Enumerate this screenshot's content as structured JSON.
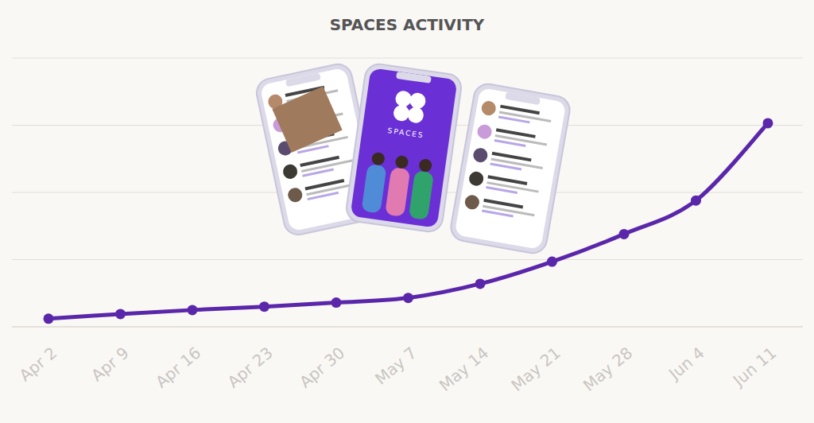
{
  "chart_data": {
    "type": "line",
    "title": "SPACES ACTIVITY",
    "categories": [
      "Apr 2",
      "Apr 9",
      "Apr 16",
      "Apr 23",
      "Apr 30",
      "May 7",
      "May 14",
      "May 21",
      "May 28",
      "Jun 4",
      "Jun 11"
    ],
    "values": [
      0.12,
      0.19,
      0.25,
      0.3,
      0.36,
      0.43,
      0.64,
      0.97,
      1.38,
      1.88,
      3.03
    ],
    "color": "#5a27ab",
    "ylim": [
      0,
      4
    ],
    "yticks": [
      0,
      1,
      2,
      3,
      4
    ],
    "grid": true,
    "tick_labels": "x",
    "marker": "circle",
    "annotations": [
      "SPACES"
    ]
  }
}
